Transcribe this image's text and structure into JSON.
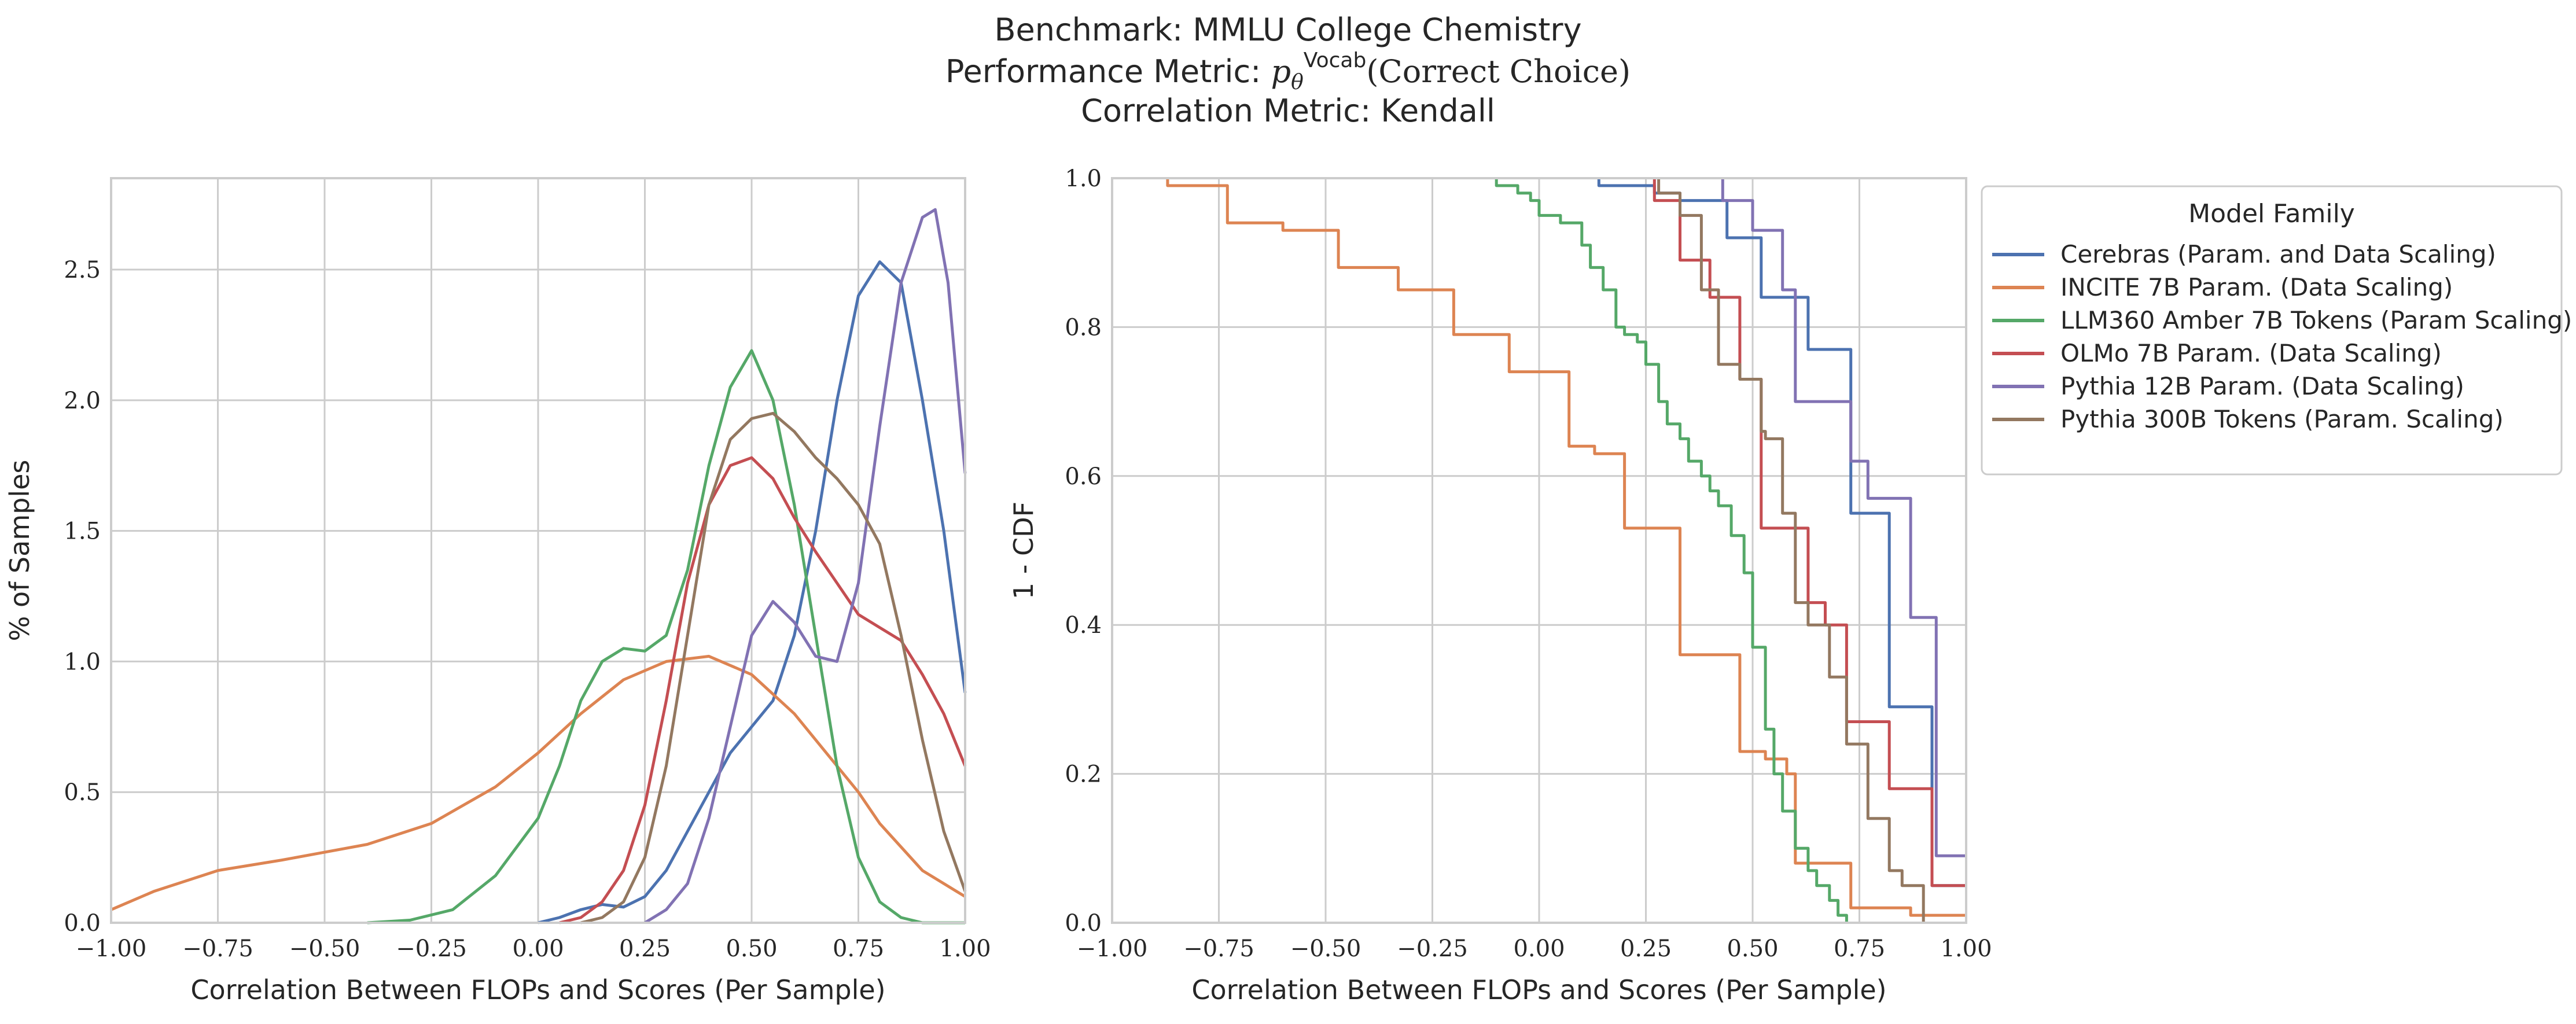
{
  "title": {
    "line1": "Benchmark: MMLU College Chemistry",
    "line2_prefix": "Performance Metric: ",
    "line2_p": "p",
    "line2_sub": "θ",
    "line2_sup": "Vocab",
    "line2_suffix": "(Correct Choice)",
    "line3": "Correlation Metric: Kendall"
  },
  "colors": {
    "Cerebras (Param. and Data Scaling)": "#4c72b0",
    "INCITE 7B Param. (Data Scaling)": "#dd8452",
    "LLM360 Amber 7B Tokens (Param Scaling)": "#55a868",
    "OLMo 7B Param. (Data Scaling)": "#c44e52",
    "Pythia 12B Param. (Data Scaling)": "#8172b3",
    "Pythia 300B Tokens (Param. Scaling)": "#937860"
  },
  "legend": {
    "title": "Model Family",
    "entries": [
      "Cerebras (Param. and Data Scaling)",
      "INCITE 7B Param. (Data Scaling)",
      "LLM360 Amber 7B Tokens (Param Scaling)",
      "OLMo 7B Param. (Data Scaling)",
      "Pythia 12B Param. (Data Scaling)",
      "Pythia 300B Tokens (Param. Scaling)"
    ]
  },
  "chart_data": [
    {
      "type": "line",
      "subtype": "kde",
      "xlabel": "Correlation Between FLOPs and Scores (Per Sample)",
      "ylabel": "% of Samples",
      "xlim": [
        -1.0,
        1.0
      ],
      "ylim": [
        0,
        2.85
      ],
      "xticks": [
        "−1.00",
        "−0.75",
        "−0.50",
        "−0.25",
        "0.00",
        "0.25",
        "0.50",
        "0.75",
        "1.00"
      ],
      "yticks": [
        "0.0",
        "0.5",
        "1.0",
        "1.5",
        "2.0",
        "2.5"
      ],
      "series": [
        {
          "name": "Cerebras (Param. and Data Scaling)",
          "x": [
            0.0,
            0.05,
            0.1,
            0.15,
            0.2,
            0.25,
            0.3,
            0.35,
            0.4,
            0.45,
            0.5,
            0.55,
            0.6,
            0.65,
            0.7,
            0.75,
            0.8,
            0.85,
            0.9,
            0.95,
            1.0
          ],
          "y": [
            0.0,
            0.02,
            0.05,
            0.07,
            0.06,
            0.1,
            0.2,
            0.35,
            0.5,
            0.65,
            0.75,
            0.85,
            1.1,
            1.5,
            2.0,
            2.4,
            2.53,
            2.45,
            2.0,
            1.5,
            0.88
          ]
        },
        {
          "name": "INCITE 7B Param. (Data Scaling)",
          "x": [
            -1.0,
            -0.9,
            -0.75,
            -0.6,
            -0.5,
            -0.4,
            -0.25,
            -0.1,
            0.0,
            0.1,
            0.2,
            0.3,
            0.4,
            0.5,
            0.6,
            0.7,
            0.75,
            0.8,
            0.9,
            1.0
          ],
          "y": [
            0.05,
            0.12,
            0.2,
            0.24,
            0.27,
            0.3,
            0.38,
            0.52,
            0.65,
            0.8,
            0.93,
            1.0,
            1.02,
            0.95,
            0.8,
            0.6,
            0.5,
            0.38,
            0.2,
            0.1
          ]
        },
        {
          "name": "LLM360 Amber 7B Tokens (Param Scaling)",
          "x": [
            -0.4,
            -0.3,
            -0.2,
            -0.1,
            0.0,
            0.05,
            0.1,
            0.15,
            0.2,
            0.25,
            0.3,
            0.35,
            0.4,
            0.45,
            0.5,
            0.55,
            0.6,
            0.65,
            0.7,
            0.75,
            0.8,
            0.85,
            0.9,
            1.0
          ],
          "y": [
            0.0,
            0.01,
            0.05,
            0.18,
            0.4,
            0.6,
            0.85,
            1.0,
            1.05,
            1.04,
            1.1,
            1.35,
            1.75,
            2.05,
            2.19,
            2.0,
            1.6,
            1.1,
            0.6,
            0.25,
            0.08,
            0.02,
            0.0,
            0.0
          ]
        },
        {
          "name": "OLMo 7B Param. (Data Scaling)",
          "x": [
            0.05,
            0.1,
            0.15,
            0.2,
            0.25,
            0.3,
            0.35,
            0.4,
            0.45,
            0.5,
            0.55,
            0.6,
            0.65,
            0.7,
            0.75,
            0.8,
            0.85,
            0.9,
            0.95,
            1.0
          ],
          "y": [
            0.0,
            0.02,
            0.08,
            0.2,
            0.45,
            0.85,
            1.3,
            1.6,
            1.75,
            1.78,
            1.7,
            1.55,
            1.42,
            1.3,
            1.18,
            1.13,
            1.08,
            0.95,
            0.8,
            0.6
          ]
        },
        {
          "name": "Pythia 12B Param. (Data Scaling)",
          "x": [
            0.25,
            0.3,
            0.35,
            0.4,
            0.45,
            0.5,
            0.55,
            0.6,
            0.65,
            0.7,
            0.75,
            0.8,
            0.85,
            0.9,
            0.93,
            0.96,
            1.0
          ],
          "y": [
            0.0,
            0.05,
            0.15,
            0.4,
            0.75,
            1.1,
            1.23,
            1.15,
            1.02,
            1.0,
            1.3,
            1.9,
            2.45,
            2.7,
            2.73,
            2.45,
            1.72
          ]
        },
        {
          "name": "Pythia 300B Tokens (Param. Scaling)",
          "x": [
            0.1,
            0.15,
            0.2,
            0.25,
            0.3,
            0.35,
            0.4,
            0.45,
            0.5,
            0.55,
            0.6,
            0.65,
            0.7,
            0.75,
            0.8,
            0.85,
            0.9,
            0.95,
            1.0
          ],
          "y": [
            0.0,
            0.02,
            0.08,
            0.25,
            0.6,
            1.1,
            1.6,
            1.85,
            1.93,
            1.95,
            1.88,
            1.78,
            1.7,
            1.6,
            1.45,
            1.1,
            0.7,
            0.35,
            0.12
          ]
        }
      ]
    },
    {
      "type": "line",
      "subtype": "step-ecdf-complement",
      "xlabel": "Correlation Between FLOPs and Scores (Per Sample)",
      "ylabel": "1 - CDF",
      "xlim": [
        -1.0,
        1.0
      ],
      "ylim": [
        0,
        1.0
      ],
      "xticks": [
        "−1.00",
        "−0.75",
        "−0.50",
        "−0.25",
        "0.00",
        "0.25",
        "0.50",
        "0.75",
        "1.00"
      ],
      "yticks": [
        "0.0",
        "0.2",
        "0.4",
        "0.6",
        "0.8",
        "1.0"
      ],
      "series": [
        {
          "name": "Cerebras (Param. and Data Scaling)",
          "x": [
            0.14,
            0.27,
            0.33,
            0.44,
            0.52,
            0.57,
            0.63,
            0.73,
            0.82,
            0.92,
            1.0
          ],
          "y": [
            0.99,
            0.98,
            0.97,
            0.92,
            0.84,
            0.84,
            0.77,
            0.55,
            0.29,
            0.05,
            0.05
          ]
        },
        {
          "name": "INCITE 7B Param. (Data Scaling)",
          "x": [
            -0.87,
            -0.73,
            -0.6,
            -0.47,
            -0.33,
            -0.2,
            -0.07,
            0.07,
            0.13,
            0.2,
            0.33,
            0.47,
            0.53,
            0.58,
            0.6,
            0.73,
            0.87,
            1.0
          ],
          "y": [
            0.99,
            0.94,
            0.93,
            0.88,
            0.85,
            0.79,
            0.74,
            0.64,
            0.63,
            0.53,
            0.36,
            0.23,
            0.22,
            0.2,
            0.08,
            0.02,
            0.01,
            0.01
          ]
        },
        {
          "name": "LLM360 Amber 7B Tokens (Param Scaling)",
          "x": [
            -0.1,
            -0.05,
            -0.02,
            0.0,
            0.05,
            0.1,
            0.12,
            0.15,
            0.18,
            0.2,
            0.23,
            0.25,
            0.28,
            0.3,
            0.33,
            0.35,
            0.38,
            0.4,
            0.42,
            0.45,
            0.48,
            0.5,
            0.53,
            0.55,
            0.57,
            0.6,
            0.63,
            0.65,
            0.68,
            0.7,
            0.72
          ],
          "y": [
            0.99,
            0.98,
            0.97,
            0.95,
            0.94,
            0.91,
            0.88,
            0.85,
            0.8,
            0.79,
            0.78,
            0.75,
            0.7,
            0.67,
            0.65,
            0.62,
            0.6,
            0.58,
            0.56,
            0.52,
            0.47,
            0.37,
            0.26,
            0.2,
            0.15,
            0.1,
            0.07,
            0.05,
            0.03,
            0.01,
            0.0
          ]
        },
        {
          "name": "OLMo 7B Param. (Data Scaling)",
          "x": [
            0.27,
            0.33,
            0.4,
            0.47,
            0.52,
            0.6,
            0.63,
            0.67,
            0.72,
            0.82,
            0.92,
            1.0
          ],
          "y": [
            0.97,
            0.89,
            0.84,
            0.73,
            0.53,
            0.53,
            0.43,
            0.4,
            0.27,
            0.18,
            0.05,
            0.05
          ]
        },
        {
          "name": "Pythia 12B Param. (Data Scaling)",
          "x": [
            0.43,
            0.43,
            0.5,
            0.57,
            0.6,
            0.67,
            0.73,
            0.77,
            0.8,
            0.87,
            0.93,
            1.0
          ],
          "y": [
            1.0,
            0.97,
            0.93,
            0.85,
            0.7,
            0.7,
            0.62,
            0.57,
            0.57,
            0.41,
            0.09,
            0.09
          ]
        },
        {
          "name": "Pythia 300B Tokens (Param. Scaling)",
          "x": [
            0.28,
            0.33,
            0.38,
            0.42,
            0.47,
            0.52,
            0.53,
            0.57,
            0.6,
            0.63,
            0.68,
            0.72,
            0.77,
            0.82,
            0.85,
            0.9
          ],
          "y": [
            0.98,
            0.95,
            0.85,
            0.75,
            0.73,
            0.66,
            0.65,
            0.55,
            0.43,
            0.4,
            0.33,
            0.24,
            0.14,
            0.07,
            0.05,
            0.0
          ]
        }
      ]
    }
  ]
}
